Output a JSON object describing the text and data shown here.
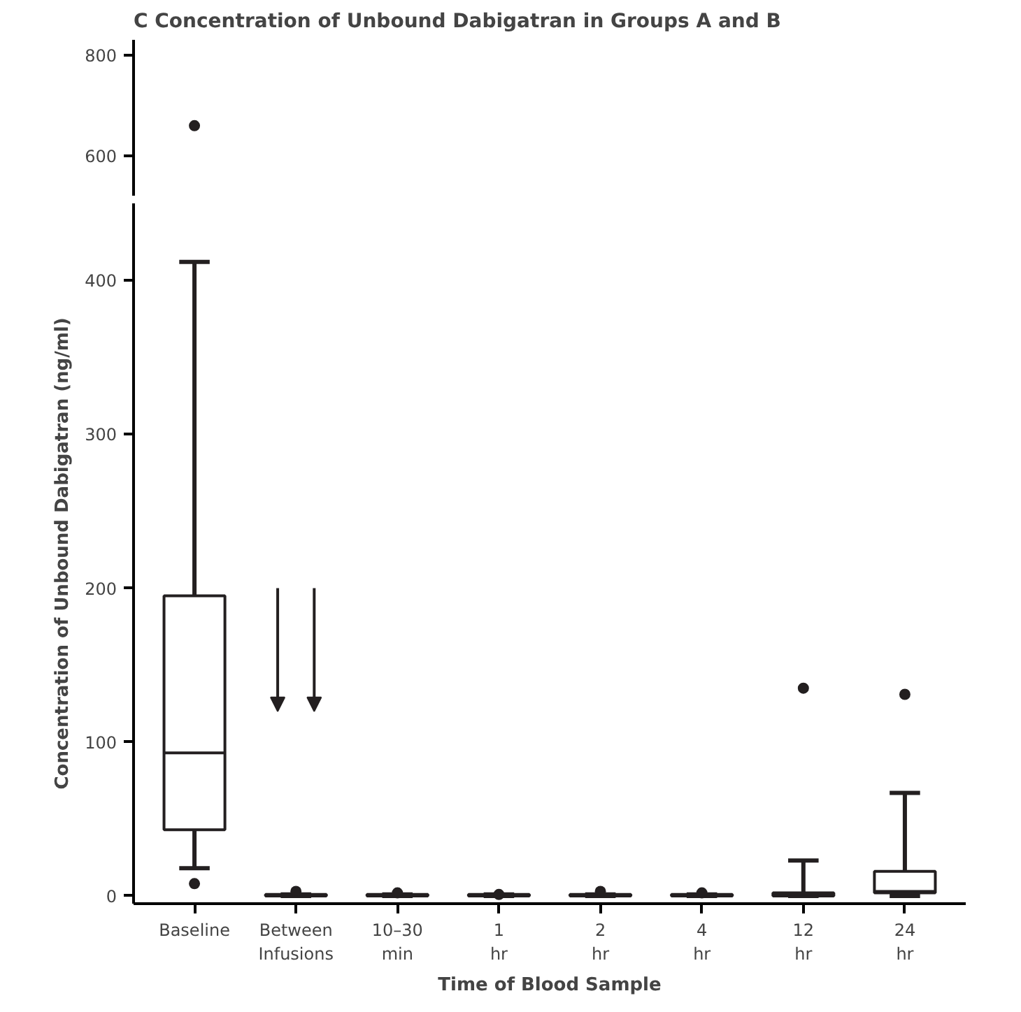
{
  "chart_data": [
    {
      "type": "scatter",
      "title": "C  Concentration of Unbound Dabigatran in Groups A and B",
      "x": [
        "Baseline"
      ],
      "values": [
        660
      ],
      "color": "#231f20",
      "marker": "circle",
      "ylim": [
        520,
        830
      ],
      "yticks": [
        600,
        800
      ],
      "tick_labels": "y"
    },
    {
      "type": "box",
      "xlabel": "Time of Blood Sample",
      "ylabel": "Concentration of Unbound Dabigatran (ng/ml)",
      "categories": [
        "Baseline",
        "Between\nInfusions",
        "10–30\nmin",
        "1\nhr",
        "2\nhr",
        "4\nhr",
        "12\nhr",
        "24\nhr"
      ],
      "color": "#231f20",
      "ylim": [
        -5,
        450
      ],
      "yticks": [
        0,
        100,
        200,
        300,
        400
      ],
      "grid": false,
      "boxes": [
        {
          "low": 18,
          "q1": 43,
          "median": 93,
          "q3": 195,
          "high": 412,
          "outliers": [
            8
          ]
        },
        {
          "low": 0,
          "q1": 0,
          "median": 0,
          "q3": 1,
          "high": 1,
          "outliers": [
            3
          ]
        },
        {
          "low": 0,
          "q1": 0,
          "median": 0,
          "q3": 1,
          "high": 1,
          "outliers": [
            2
          ]
        },
        {
          "low": 0,
          "q1": 0,
          "median": 0,
          "q3": 1,
          "high": 1,
          "outliers": [
            1
          ]
        },
        {
          "low": 0,
          "q1": 0,
          "median": 0,
          "q3": 1,
          "high": 1,
          "outliers": [
            3
          ]
        },
        {
          "low": 0,
          "q1": 0,
          "median": 0,
          "q3": 1,
          "high": 1,
          "outliers": [
            2
          ]
        },
        {
          "low": 0,
          "q1": 0,
          "median": 1,
          "q3": 2,
          "high": 23,
          "outliers": [
            135
          ]
        },
        {
          "low": 0,
          "q1": 2,
          "median": 3,
          "q3": 16,
          "high": 67,
          "outliers": [
            131
          ]
        }
      ]
    }
  ]
}
